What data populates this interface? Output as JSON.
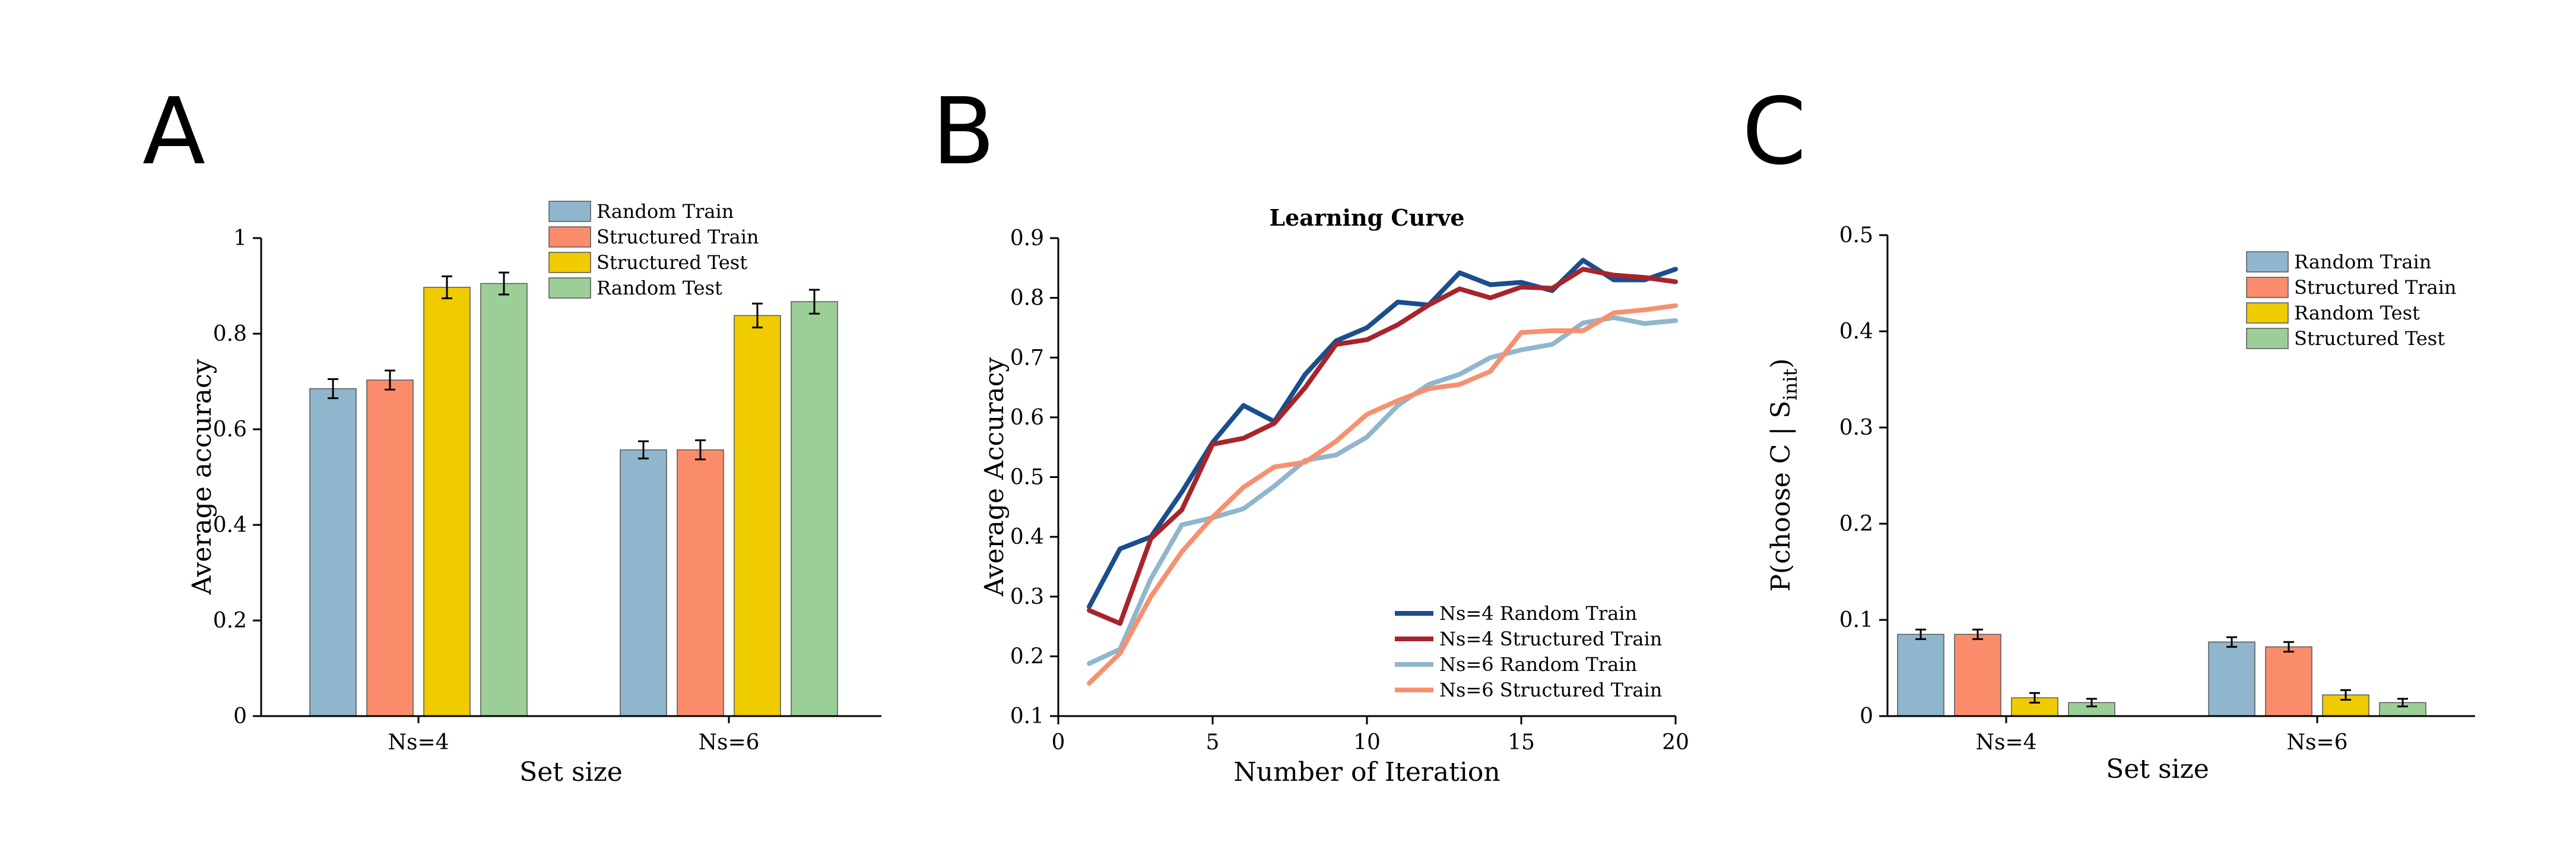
{
  "figure": {
    "panels": [
      "A",
      "B",
      "C"
    ]
  },
  "colors": {
    "random_train": "#8fb6cc",
    "structured_train": "#fa8c6c",
    "structured_test_yellow": "#efcb00",
    "random_test_green": "#9ccf97",
    "ns4_random": "#1a4e8c",
    "ns4_structured": "#a8242a",
    "ns6_random": "#8fb6cc",
    "ns6_structured": "#f89070"
  },
  "chart_data": [
    {
      "panel": "A",
      "type": "bar",
      "xlabel": "Set size",
      "ylabel": "Average accuracy",
      "categories": [
        "Ns=4",
        "Ns=6"
      ],
      "ylim": [
        0,
        1
      ],
      "yticks": [
        "0",
        "0.2",
        "0.4",
        "0.6",
        "0.8",
        "1"
      ],
      "yticks_values": [
        0,
        0.2,
        0.4,
        0.6,
        0.8,
        1.0
      ],
      "legend_position": "top-right",
      "series": [
        {
          "name": "Random Train",
          "values": [
            0.685,
            0.557
          ],
          "errors": [
            0.02,
            0.018
          ]
        },
        {
          "name": "Structured Train",
          "values": [
            0.703,
            0.557
          ],
          "errors": [
            0.02,
            0.02
          ]
        },
        {
          "name": "Structured Test",
          "values": [
            0.897,
            0.838
          ],
          "errors": [
            0.023,
            0.025
          ]
        },
        {
          "name": "Random Test",
          "values": [
            0.905,
            0.867
          ],
          "errors": [
            0.023,
            0.025
          ]
        }
      ]
    },
    {
      "panel": "B",
      "type": "line",
      "title": "Learning Curve",
      "xlabel": "Number of Iteration",
      "ylabel": "Average Accuracy",
      "xlim": [
        0,
        20
      ],
      "ylim": [
        0.1,
        0.9
      ],
      "xticks": [
        "0",
        "5",
        "10",
        "15",
        "20"
      ],
      "xticks_values": [
        0,
        5,
        10,
        15,
        20
      ],
      "yticks": [
        "0.1",
        "0.2",
        "0.3",
        "0.4",
        "0.5",
        "0.6",
        "0.7",
        "0.8",
        "0.9"
      ],
      "yticks_values": [
        0.1,
        0.2,
        0.3,
        0.4,
        0.5,
        0.6,
        0.7,
        0.8,
        0.9
      ],
      "legend_position": "bottom-right",
      "x": [
        1,
        2,
        3,
        4,
        5,
        6,
        7,
        8,
        9,
        10,
        11,
        12,
        13,
        14,
        15,
        16,
        17,
        18,
        19,
        20
      ],
      "series": [
        {
          "name": "Ns=4 Random Train",
          "values": [
            0.283,
            0.38,
            0.4,
            0.475,
            0.558,
            0.62,
            0.593,
            0.672,
            0.728,
            0.75,
            0.793,
            0.788,
            0.842,
            0.822,
            0.826,
            0.812,
            0.863,
            0.83,
            0.83,
            0.848
          ]
        },
        {
          "name": "Ns=4 Structured Train",
          "values": [
            0.277,
            0.255,
            0.397,
            0.445,
            0.555,
            0.565,
            0.59,
            0.65,
            0.722,
            0.73,
            0.755,
            0.788,
            0.815,
            0.8,
            0.818,
            0.816,
            0.848,
            0.838,
            0.834,
            0.827
          ]
        },
        {
          "name": "Ns=6 Random Train",
          "values": [
            0.188,
            0.212,
            0.33,
            0.42,
            0.432,
            0.447,
            0.485,
            0.528,
            0.537,
            0.567,
            0.62,
            0.655,
            0.672,
            0.7,
            0.713,
            0.722,
            0.758,
            0.767,
            0.757,
            0.762
          ]
        },
        {
          "name": "Ns=6 Structured Train",
          "values": [
            0.155,
            0.205,
            0.3,
            0.375,
            0.433,
            0.483,
            0.517,
            0.525,
            0.56,
            0.605,
            0.628,
            0.648,
            0.655,
            0.677,
            0.742,
            0.745,
            0.745,
            0.775,
            0.78,
            0.787
          ]
        }
      ]
    },
    {
      "panel": "C",
      "type": "bar",
      "xlabel": "Set size",
      "ylabel": "P(choose C | S",
      "ylabel_sub": "init",
      "ylabel_end": ")",
      "categories": [
        "Ns=4",
        "Ns=6"
      ],
      "ylim": [
        0,
        0.5
      ],
      "yticks": [
        "0",
        "0.1",
        "0.2",
        "0.3",
        "0.4",
        "0.5"
      ],
      "yticks_values": [
        0,
        0.1,
        0.2,
        0.3,
        0.4,
        0.5
      ],
      "legend_position": "top-right",
      "series": [
        {
          "name": "Random Train",
          "values": [
            0.085,
            0.077
          ],
          "errors": [
            0.005,
            0.005
          ]
        },
        {
          "name": "Structured Train",
          "values": [
            0.085,
            0.072
          ],
          "errors": [
            0.005,
            0.005
          ]
        },
        {
          "name": "Random Test",
          "values": [
            0.019,
            0.022
          ],
          "errors": [
            0.005,
            0.005
          ]
        },
        {
          "name": "Structured Test",
          "values": [
            0.014,
            0.014
          ],
          "errors": [
            0.004,
            0.004
          ]
        }
      ]
    }
  ]
}
